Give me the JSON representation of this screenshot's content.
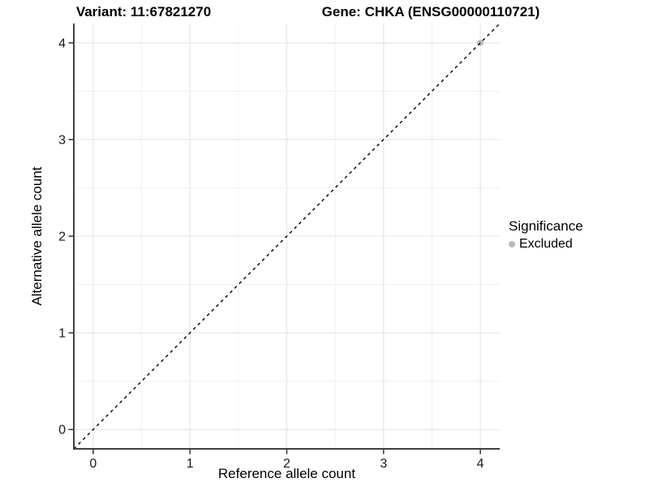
{
  "chart_data": {
    "type": "scatter",
    "titles": {
      "left": "Variant: 11:67821270",
      "right": "Gene: CHKA (ENSG00000110721)"
    },
    "xlabel": "Reference allele count",
    "ylabel": "Alternative allele count",
    "xlim": [
      -0.2,
      4.2
    ],
    "ylim": [
      -0.2,
      4.2
    ],
    "xticks": [
      0,
      1,
      2,
      3,
      4
    ],
    "yticks": [
      0,
      1,
      2,
      3,
      4
    ],
    "minor_xticks": [
      0.5,
      1.5,
      2.5,
      3.5
    ],
    "minor_yticks": [
      0.5,
      1.5,
      2.5,
      3.5
    ],
    "grid": "major and minor, light gray on white",
    "points": [
      {
        "x": 4,
        "y": 4,
        "series": "Excluded"
      }
    ],
    "identity_line": {
      "style": "dashed",
      "x1": -0.2,
      "y1": -0.2,
      "x2": 4.2,
      "y2": 4.2,
      "color": "#000000"
    },
    "legend": {
      "title": "Significance",
      "position": "right",
      "items": [
        {
          "label": "Excluded",
          "color": "#b8b8b8"
        }
      ]
    },
    "colors": {
      "background": "#ffffff",
      "grid_major": "#e4e4e4",
      "grid_minor": "#f1f1f1",
      "axis_line": "#404040",
      "tick_mark": "#333333",
      "tick_label": "#1a1a1a",
      "point_excluded": "#b8b8b8"
    }
  }
}
